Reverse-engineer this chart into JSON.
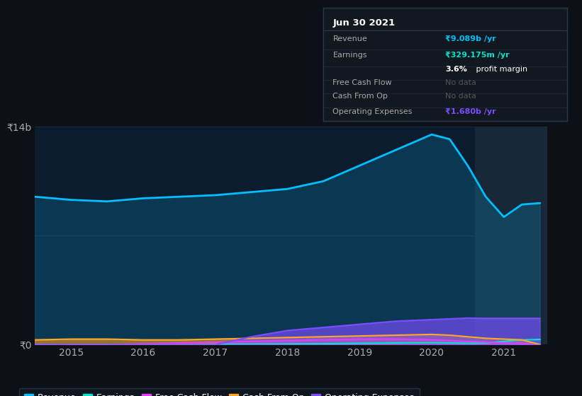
{
  "bg_color": "#0d1117",
  "plot_bg_color": "#0d1b2e",
  "grid_color": "#1e3050",
  "years": [
    2014.5,
    2015.0,
    2015.5,
    2016.0,
    2016.5,
    2017.0,
    2017.5,
    2018.0,
    2018.5,
    2019.0,
    2019.5,
    2020.0,
    2020.25,
    2020.5,
    2020.75,
    2021.0,
    2021.25,
    2021.5
  ],
  "revenue": [
    9.5,
    9.3,
    9.2,
    9.4,
    9.5,
    9.6,
    9.8,
    10.0,
    10.5,
    11.5,
    12.5,
    13.5,
    13.2,
    11.5,
    9.5,
    8.2,
    9.0,
    9.089
  ],
  "earnings": [
    -0.05,
    -0.02,
    -0.02,
    0.0,
    0.0,
    0.02,
    0.03,
    0.04,
    0.05,
    0.08,
    0.1,
    0.12,
    0.1,
    0.08,
    0.1,
    0.2,
    0.3,
    0.329
  ],
  "free_cash_flow": [
    0.0,
    0.0,
    0.0,
    0.05,
    0.1,
    0.15,
    0.2,
    0.25,
    0.3,
    0.35,
    0.35,
    0.3,
    0.25,
    0.2,
    0.15,
    0.1,
    0.08,
    0.0
  ],
  "cash_from_op": [
    0.3,
    0.35,
    0.35,
    0.3,
    0.3,
    0.35,
    0.4,
    0.45,
    0.5,
    0.55,
    0.6,
    0.65,
    0.6,
    0.5,
    0.4,
    0.35,
    0.3,
    0.0
  ],
  "operating_expenses": [
    0.0,
    0.0,
    0.0,
    0.0,
    0.0,
    0.0,
    0.5,
    0.9,
    1.1,
    1.3,
    1.5,
    1.6,
    1.65,
    1.7,
    1.68,
    1.68,
    1.68,
    1.68
  ],
  "revenue_color": "#00bfff",
  "earnings_color": "#00e5cc",
  "fcf_color": "#e040fb",
  "cashop_color": "#ffa726",
  "opex_color": "#7c4dff",
  "highlight_start": 2020.6,
  "highlight_end": 2021.6,
  "highlight_color": "#1a2a3a",
  "ylim": [
    0,
    14
  ],
  "xlim": [
    2014.5,
    2021.6
  ],
  "ytick_labels": [
    "₹0",
    "₹14b"
  ],
  "ytick_vals": [
    0,
    14
  ],
  "xticks": [
    2015,
    2016,
    2017,
    2018,
    2019,
    2020,
    2021
  ],
  "legend_items": [
    "Revenue",
    "Earnings",
    "Free Cash Flow",
    "Cash From Op",
    "Operating Expenses"
  ],
  "legend_colors": [
    "#00bfff",
    "#00e5cc",
    "#e040fb",
    "#ffa726",
    "#7c4dff"
  ],
  "tooltip_title": "Jun 30 2021",
  "tooltip_rows": [
    {
      "label": "Revenue",
      "value": "₹9.089b /yr",
      "value_color": "#00bfff",
      "gray": false
    },
    {
      "label": "Earnings",
      "value": "₹329.175m /yr",
      "value_color": "#00e5cc",
      "gray": false
    },
    {
      "label": "",
      "value": "3.6% profit margin",
      "value_color": "#ffffff",
      "gray": false,
      "bold_prefix": "3.6%"
    },
    {
      "label": "Free Cash Flow",
      "value": "No data",
      "value_color": "#555555",
      "gray": true
    },
    {
      "label": "Cash From Op",
      "value": "No data",
      "value_color": "#555555",
      "gray": true
    },
    {
      "label": "Operating Expenses",
      "value": "₹1.680b /yr",
      "value_color": "#7c4dff",
      "gray": false
    }
  ]
}
